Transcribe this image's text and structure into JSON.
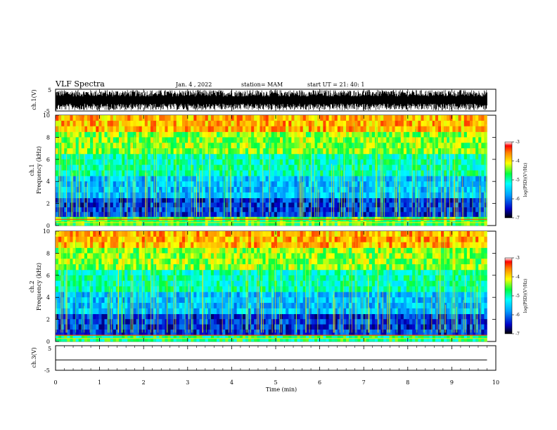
{
  "header": {
    "title": "VLF Spectra",
    "date": "Jan. 4 , 2022",
    "station": "station= MAM",
    "start": "start UT = 21: 40: 1"
  },
  "chart_data": [
    {
      "type": "line",
      "panel": "ch1-waveform",
      "ylabel": "ch.1(V)",
      "yticks": [
        "5",
        "-5"
      ],
      "ylim": [
        -5,
        5
      ],
      "xlim": [
        0,
        10
      ],
      "description_series": "dense clipped waveform spikes spanning full range",
      "color": "#000000"
    },
    {
      "type": "heatmap",
      "panel": "ch1-spectrogram",
      "ylabel": "ch.1",
      "ylabel2": "Frequency (kHz)",
      "yticks": [
        "0",
        "2",
        "4",
        "6",
        "8",
        "10"
      ],
      "ylim": [
        0,
        10
      ],
      "xlim": [
        0,
        9.8
      ],
      "colorbar": {
        "label": "log(PSD)(V²/Hz)",
        "ticks": [
          "-3",
          "-4",
          "-5",
          "-6",
          "-7"
        ],
        "range": [
          -7,
          -3
        ]
      },
      "band_levels": [
        {
          "f_low": 0,
          "f_high": 0.8,
          "level": -4.6
        },
        {
          "f_low": 0.8,
          "f_high": 2.5,
          "level": -6.3
        },
        {
          "f_low": 2.5,
          "f_high": 4.5,
          "level": -5.6
        },
        {
          "f_low": 4.5,
          "f_high": 6.5,
          "level": -5.0
        },
        {
          "f_low": 6.5,
          "f_high": 8.5,
          "level": -4.4
        },
        {
          "f_low": 8.5,
          "f_high": 10,
          "level": -3.8
        }
      ]
    },
    {
      "type": "heatmap",
      "panel": "ch2-spectrogram",
      "ylabel": "ch.2",
      "ylabel2": "Frequency (kHz)",
      "yticks": [
        "0",
        "2",
        "4",
        "6",
        "8",
        "10"
      ],
      "ylim": [
        0,
        10
      ],
      "xlim": [
        0,
        9.8
      ],
      "colorbar": {
        "label": "log(PSD)(V²/Hz)",
        "ticks": [
          "-3",
          "-4",
          "-5",
          "-6",
          "-7"
        ],
        "range": [
          -7,
          -3
        ]
      },
      "band_levels": [
        {
          "f_low": 0,
          "f_high": 0.6,
          "level": -4.8
        },
        {
          "f_low": 0.6,
          "f_high": 2.5,
          "level": -6.3
        },
        {
          "f_low": 2.5,
          "f_high": 4.5,
          "level": -5.6
        },
        {
          "f_low": 4.5,
          "f_high": 6.5,
          "level": -5.0
        },
        {
          "f_low": 6.5,
          "f_high": 8.5,
          "level": -4.4
        },
        {
          "f_low": 8.5,
          "f_high": 10,
          "level": -3.8
        }
      ]
    },
    {
      "type": "line",
      "panel": "ch3-waveform",
      "ylabel": "ch.3(V)",
      "yticks": [
        "5",
        "-5"
      ],
      "ylim": [
        -5,
        5
      ],
      "xlim": [
        0,
        10
      ],
      "series": [
        {
          "x": [
            0,
            9.8
          ],
          "y": [
            -0.8,
            -0.8
          ]
        }
      ],
      "color": "#000000"
    }
  ],
  "xaxis": {
    "label": "Time (min)",
    "ticks": [
      "0",
      "1",
      "2",
      "3",
      "4",
      "5",
      "6",
      "7",
      "8",
      "9",
      "10"
    ],
    "range": [
      0,
      10
    ]
  }
}
